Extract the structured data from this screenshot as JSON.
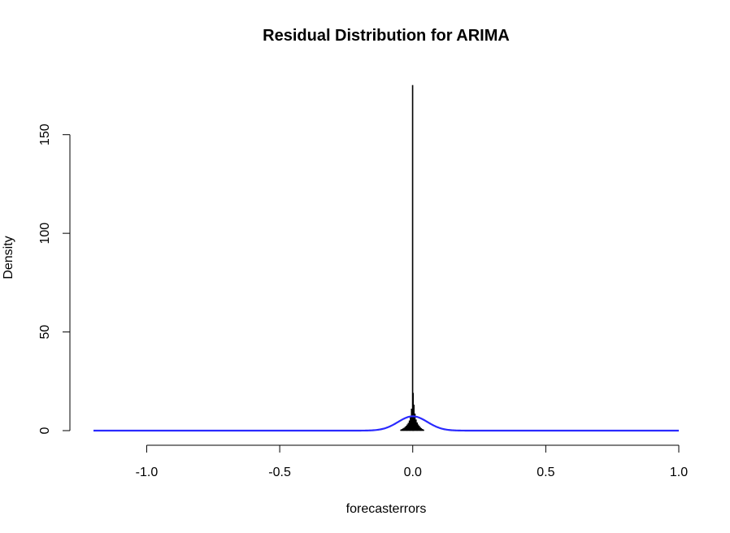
{
  "chart_data": {
    "type": "histogram",
    "title": "Residual Distribution for ARIMA",
    "xlabel": "forecasterrors",
    "ylabel": "Density",
    "xlim": [
      -1.2,
      1.0
    ],
    "ylim": [
      0,
      175
    ],
    "x_ticks": [
      -1.0,
      -0.5,
      0.0,
      0.5,
      1.0
    ],
    "x_tick_labels": [
      "-1.0",
      "-0.5",
      "0.0",
      "0.5",
      "1.0"
    ],
    "y_ticks": [
      0,
      50,
      100,
      150
    ],
    "y_tick_labels": [
      "0",
      "50",
      "100",
      "150"
    ],
    "grid": false,
    "legend": "none",
    "histogram": {
      "bar_color": "#000000",
      "bins": [
        {
          "x0": -0.046,
          "x1": -0.042,
          "density": 0.4
        },
        {
          "x0": -0.042,
          "x1": -0.038,
          "density": 0.7
        },
        {
          "x0": -0.038,
          "x1": -0.034,
          "density": 1.0
        },
        {
          "x0": -0.034,
          "x1": -0.03,
          "density": 1.3
        },
        {
          "x0": -0.03,
          "x1": -0.026,
          "density": 1.8
        },
        {
          "x0": -0.026,
          "x1": -0.022,
          "density": 2.3
        },
        {
          "x0": -0.022,
          "x1": -0.018,
          "density": 3.0
        },
        {
          "x0": -0.018,
          "x1": -0.014,
          "density": 3.8
        },
        {
          "x0": -0.014,
          "x1": -0.01,
          "density": 5.0
        },
        {
          "x0": -0.01,
          "x1": -0.006,
          "density": 7.0
        },
        {
          "x0": -0.006,
          "x1": -0.002,
          "density": 11.0
        },
        {
          "x0": -0.002,
          "x1": 0.0,
          "density": 175.0
        },
        {
          "x0": 0.0,
          "x1": 0.002,
          "density": 19.0
        },
        {
          "x0": 0.002,
          "x1": 0.006,
          "density": 13.0
        },
        {
          "x0": 0.006,
          "x1": 0.01,
          "density": 8.5
        },
        {
          "x0": 0.01,
          "x1": 0.014,
          "density": 5.5
        },
        {
          "x0": 0.014,
          "x1": 0.018,
          "density": 4.0
        },
        {
          "x0": 0.018,
          "x1": 0.022,
          "density": 3.0
        },
        {
          "x0": 0.022,
          "x1": 0.026,
          "density": 2.3
        },
        {
          "x0": 0.026,
          "x1": 0.03,
          "density": 1.6
        },
        {
          "x0": 0.03,
          "x1": 0.034,
          "density": 1.1
        },
        {
          "x0": 0.034,
          "x1": 0.038,
          "density": 0.7
        },
        {
          "x0": 0.038,
          "x1": 0.042,
          "density": 0.4
        }
      ]
    },
    "normal_curve": {
      "name": "",
      "color": "#2a2aff",
      "mean": 0.0,
      "sd": 0.055,
      "x_range": [
        -1.2,
        1.0
      ]
    }
  }
}
